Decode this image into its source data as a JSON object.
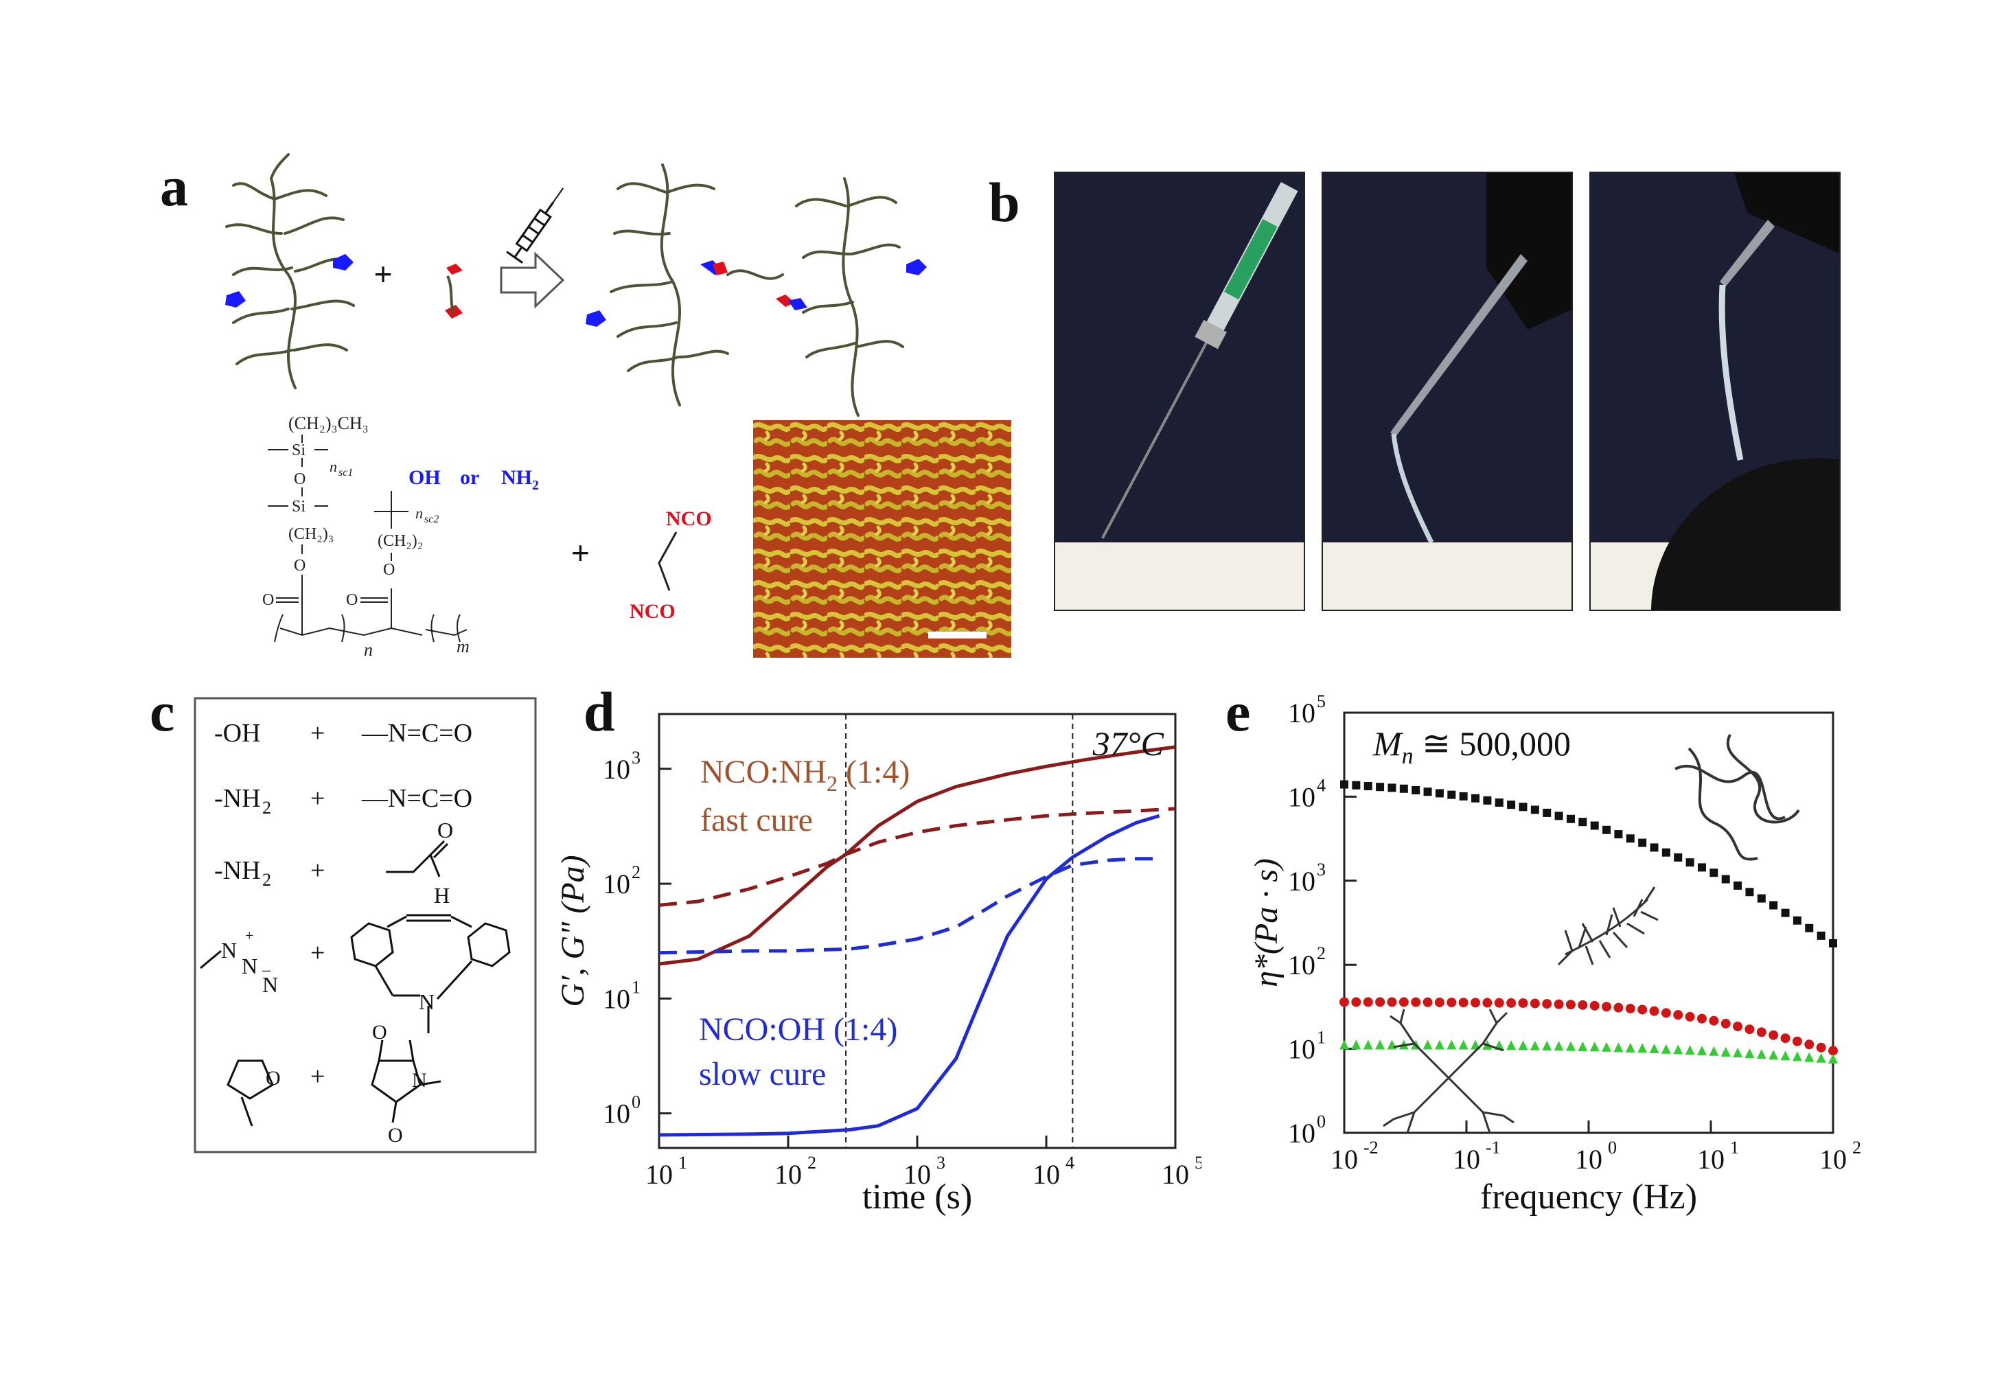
{
  "panels": {
    "a": {
      "letter": "a",
      "monomer": {
        "side_chain_top": "(CH₂)₃CH₃",
        "si": "Si",
        "n_sc1": "n",
        "n_sc1_sub": "sc1",
        "o": "O",
        "ch2_3": "(CH₂)₃",
        "ch2_2": "(CH₂)₂",
        "n_sc2": "n",
        "n_sc2_sub": "sc2",
        "oh_or_nh2_a": "OH",
        "oh_or_nh2_or": "or",
        "oh_or_nh2_b": "NH",
        "oh_or_nh2_sub": "2",
        "carbonyl_o": "O",
        "n": "n",
        "m": "m"
      },
      "plus": "+",
      "nco_top": "NCO",
      "nco_bottom": "NCO"
    },
    "b": {
      "letter": "b"
    },
    "c": {
      "letter": "c",
      "rows": [
        {
          "left": "-OH",
          "plus": "+",
          "right": "—N=C=O"
        },
        {
          "left": "-NH",
          "left_sub": "2",
          "plus": "+",
          "right": "—N=C=O"
        },
        {
          "left": "-NH",
          "left_sub": "2",
          "plus": "+",
          "right_o": "O",
          "right_h": "H"
        },
        {
          "azide": "N",
          "azide_plus": "+",
          "azide_n2": "N",
          "azide_minus": "–",
          "azide_n3": "N",
          "plus": "+",
          "amine_n": "N"
        },
        {
          "furan_o": "O",
          "plus": "+",
          "mal_o1": "O",
          "mal_n": "N",
          "mal_o2": "O"
        }
      ]
    },
    "d": {
      "letter": "d",
      "temperature": "37°C",
      "label_fast_1": "NCO:NH",
      "label_fast_sub": "2",
      "label_fast_2": " (1:4)",
      "label_fast_3": "fast cure",
      "label_slow_1": "NCO:OH (1:4)",
      "label_slow_2": "slow cure",
      "xlabel": "time (s)",
      "ylabel": "G′, G\" (Pa)",
      "x_ticks": [
        "10",
        "10",
        "10",
        "10",
        "10"
      ],
      "x_tick_exp": [
        "1",
        "2",
        "3",
        "4",
        "5"
      ],
      "y_ticks": [
        "10",
        "10",
        "10",
        "10"
      ],
      "y_tick_exp": [
        "0",
        "1",
        "2",
        "3"
      ]
    },
    "e": {
      "letter": "e",
      "mn_label": "M",
      "mn_sub": "n",
      "mn_value": " ≅ 500,000",
      "xlabel": "frequency (Hz)",
      "ylabel": "η*(Pa · s)",
      "x_ticks": [
        "10",
        "10",
        "10",
        "10",
        "10"
      ],
      "x_tick_exp": [
        "-2",
        "-1",
        "0",
        "1",
        "2"
      ],
      "y_ticks": [
        "10",
        "10",
        "10",
        "10",
        "10",
        "10"
      ],
      "y_tick_exp": [
        "0",
        "1",
        "2",
        "3",
        "4",
        "5"
      ]
    }
  },
  "colors": {
    "dark_red": "#8b1a1a",
    "fast_text": "#a0522d",
    "blue": "#1f2bd6",
    "chem_blue": "#1a1aff",
    "chem_red": "#e0101a",
    "black_series": "#111111",
    "red_series": "#d01515",
    "green_series": "#33cc33",
    "chain_green": "#4a5535"
  },
  "chart_data": [
    {
      "type": "line",
      "panel": "d",
      "xlabel": "time (s)",
      "ylabel": "G′, G\" (Pa)",
      "xscale": "log",
      "yscale": "log",
      "xlim": [
        10,
        100000
      ],
      "ylim": [
        0.5,
        3000
      ],
      "annotations": [
        "37°C",
        "NCO:NH2 (1:4) fast cure",
        "NCO:OH (1:4) slow cure"
      ],
      "vlines": [
        280,
        16000
      ],
      "series": [
        {
          "name": "NCO:NH2 (1:4) G′",
          "style": "solid",
          "color": "#8b1a1a",
          "x": [
            10,
            20,
            50,
            100,
            200,
            280,
            500,
            1000,
            2000,
            5000,
            10000,
            20000,
            50000,
            100000
          ],
          "y": [
            20,
            22,
            35,
            70,
            140,
            180,
            320,
            520,
            700,
            900,
            1050,
            1200,
            1400,
            1550
          ]
        },
        {
          "name": "NCO:NH2 (1:4) G\"",
          "style": "dashed",
          "color": "#8b1a1a",
          "x": [
            10,
            20,
            50,
            100,
            200,
            280,
            500,
            1000,
            2000,
            5000,
            10000,
            20000,
            50000,
            100000
          ],
          "y": [
            65,
            70,
            90,
            115,
            150,
            180,
            230,
            280,
            320,
            360,
            390,
            410,
            430,
            450
          ]
        },
        {
          "name": "NCO:OH (1:4) G′",
          "style": "solid",
          "color": "#1f2bd6",
          "x": [
            10,
            50,
            100,
            300,
            500,
            1000,
            2000,
            3000,
            5000,
            10000,
            16000,
            30000,
            50000,
            75000
          ],
          "y": [
            0.65,
            0.66,
            0.67,
            0.72,
            0.78,
            1.1,
            3.0,
            9,
            35,
            110,
            170,
            260,
            340,
            390
          ]
        },
        {
          "name": "NCO:OH (1:4) G\"",
          "style": "dashed",
          "color": "#1f2bd6",
          "x": [
            10,
            50,
            100,
            300,
            500,
            1000,
            2000,
            3000,
            5000,
            10000,
            16000,
            30000,
            50000,
            75000
          ],
          "y": [
            25,
            26,
            26,
            27,
            29,
            33,
            42,
            55,
            78,
            115,
            145,
            160,
            165,
            165
          ]
        }
      ]
    },
    {
      "type": "scatter",
      "panel": "e",
      "xlabel": "frequency (Hz)",
      "ylabel": "η*(Pa · s)",
      "xscale": "log",
      "yscale": "log",
      "xlim": [
        0.01,
        100
      ],
      "ylim": [
        1,
        100000
      ],
      "annotations": [
        "Mn ≅ 500,000"
      ],
      "series": [
        {
          "name": "linear",
          "marker": "square",
          "color": "#111111",
          "x": [
            0.01,
            0.03,
            0.1,
            0.3,
            1,
            3,
            10,
            30,
            100
          ],
          "y": [
            14000,
            12500,
            10000,
            7500,
            4800,
            2700,
            1300,
            550,
            180
          ]
        },
        {
          "name": "bottlebrush",
          "marker": "circle",
          "color": "#d01515",
          "x": [
            0.01,
            0.03,
            0.1,
            0.3,
            1,
            3,
            10,
            30,
            100
          ],
          "y": [
            36,
            36,
            35.5,
            35,
            33,
            29,
            22,
            15,
            9.5
          ]
        },
        {
          "name": "branched",
          "marker": "triangle",
          "color": "#33cc33",
          "x": [
            0.01,
            0.03,
            0.1,
            0.3,
            1,
            3,
            10,
            30,
            100
          ],
          "y": [
            11,
            11,
            11,
            10.8,
            10.5,
            10,
            9.3,
            8.4,
            7.5
          ]
        }
      ]
    }
  ]
}
